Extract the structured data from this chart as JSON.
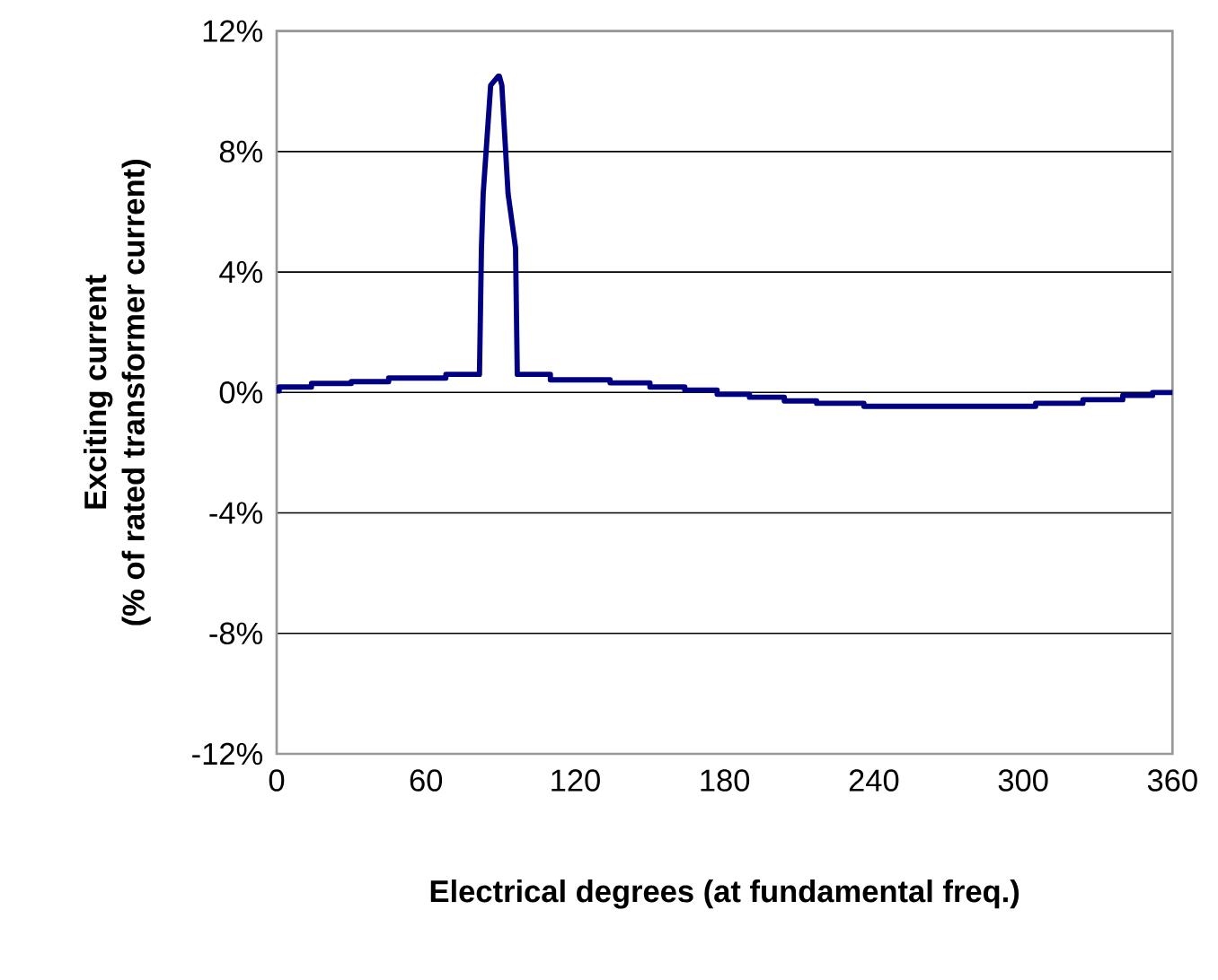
{
  "chart_data": {
    "type": "line",
    "xlabel": "Electrical degrees (at fundamental freq.)",
    "ylabel": "Exciting current\n(% of rated transformer current)",
    "xlim": [
      0,
      360
    ],
    "xticks": [
      0,
      60,
      120,
      180,
      240,
      300,
      360
    ],
    "ylim": [
      -12,
      12
    ],
    "yticks": [
      {
        "value": -12,
        "label": "-12%"
      },
      {
        "value": -8,
        "label": "-8%"
      },
      {
        "value": -4,
        "label": "-4%"
      },
      {
        "value": 0,
        "label": "0%"
      },
      {
        "value": 4,
        "label": "4%"
      },
      {
        "value": 8,
        "label": "8%"
      },
      {
        "value": 12,
        "label": "12%"
      }
    ],
    "grid": "y",
    "marker": "none",
    "line_style": "solid",
    "series": [
      {
        "color": "#000080",
        "x": [
          0,
          1,
          1,
          14,
          14,
          30,
          30,
          45,
          45,
          68,
          68,
          81.5,
          82.3,
          83,
          86,
          89,
          89.5,
          90.5,
          93,
          96,
          96.7,
          98,
          110,
          110,
          134,
          134,
          150,
          150,
          164,
          164,
          177,
          177,
          190,
          190,
          204,
          204,
          217,
          217,
          236,
          236,
          305,
          305,
          324,
          324,
          340,
          340,
          352,
          352,
          360
        ],
        "values": [
          0.05,
          0.05,
          0.18,
          0.18,
          0.3,
          0.3,
          0.36,
          0.36,
          0.48,
          0.48,
          0.6,
          0.6,
          4.8,
          6.6,
          10.2,
          10.5,
          10.5,
          10.2,
          6.6,
          4.8,
          0.6,
          0.6,
          0.6,
          0.42,
          0.42,
          0.32,
          0.32,
          0.18,
          0.18,
          0.08,
          0.08,
          -0.06,
          -0.06,
          -0.16,
          -0.16,
          -0.28,
          -0.28,
          -0.36,
          -0.36,
          -0.46,
          -0.46,
          -0.36,
          -0.36,
          -0.24,
          -0.24,
          -0.1,
          -0.1,
          0,
          0
        ]
      }
    ]
  }
}
